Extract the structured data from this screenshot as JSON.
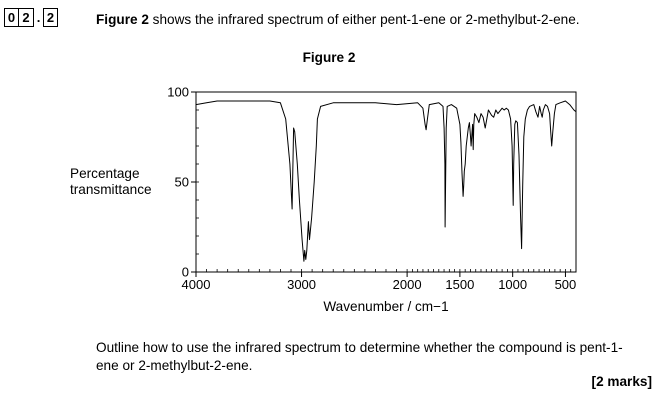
{
  "question": {
    "number_digits": [
      "0",
      "2"
    ],
    "separator": ".",
    "part_digit": "2",
    "intro_bold": "Figure 2",
    "intro_rest": " shows the infrared spectrum of either pent-1-ene or 2-methylbut-2-ene.",
    "outline_text": "Outline how to use the infrared spectrum to determine whether the compound is pent-1-ene or 2-methylbut-2-ene.",
    "marks": "[2 marks]"
  },
  "chart_data": {
    "type": "line",
    "title": "Figure 2",
    "xlabel": "Wavenumber / cm−1",
    "ylabel": "Percentage transmittance",
    "xlim": [
      4000,
      400
    ],
    "ylim": [
      0,
      100
    ],
    "x_ticks": [
      4000,
      3000,
      2000,
      1500,
      1000,
      500
    ],
    "x_tick_labels": [
      "4000",
      "3000",
      "2000",
      "1500",
      "1000",
      "500"
    ],
    "y_ticks": [
      0,
      50,
      100
    ],
    "y_tick_labels": [
      "0",
      "50",
      "100"
    ],
    "grid": false,
    "series": [
      {
        "points": [
          [
            4000,
            93
          ],
          [
            3900,
            94
          ],
          [
            3800,
            95
          ],
          [
            3700,
            95
          ],
          [
            3500,
            95
          ],
          [
            3300,
            95
          ],
          [
            3200,
            94
          ],
          [
            3150,
            85
          ],
          [
            3110,
            60
          ],
          [
            3090,
            35
          ],
          [
            3080,
            65
          ],
          [
            3075,
            80
          ],
          [
            3065,
            78
          ],
          [
            3040,
            60
          ],
          [
            3020,
            40
          ],
          [
            2995,
            18
          ],
          [
            2978,
            6
          ],
          [
            2970,
            12
          ],
          [
            2960,
            7
          ],
          [
            2950,
            12
          ],
          [
            2935,
            28
          ],
          [
            2925,
            18
          ],
          [
            2905,
            30
          ],
          [
            2880,
            50
          ],
          [
            2860,
            70
          ],
          [
            2850,
            85
          ],
          [
            2820,
            92
          ],
          [
            2700,
            94
          ],
          [
            2500,
            94
          ],
          [
            2300,
            94
          ],
          [
            2100,
            93
          ],
          [
            1900,
            94
          ],
          [
            1850,
            91
          ],
          [
            1830,
            82
          ],
          [
            1820,
            79
          ],
          [
            1810,
            84
          ],
          [
            1790,
            93
          ],
          [
            1700,
            94
          ],
          [
            1660,
            92
          ],
          [
            1650,
            80
          ],
          [
            1642,
            60
          ],
          [
            1640,
            25
          ],
          [
            1636,
            45
          ],
          [
            1630,
            80
          ],
          [
            1620,
            92
          ],
          [
            1580,
            93
          ],
          [
            1530,
            91
          ],
          [
            1500,
            82
          ],
          [
            1490,
            72
          ],
          [
            1480,
            55
          ],
          [
            1470,
            42
          ],
          [
            1464,
            48
          ],
          [
            1458,
            56
          ],
          [
            1450,
            60
          ],
          [
            1440,
            70
          ],
          [
            1420,
            80
          ],
          [
            1410,
            83
          ],
          [
            1400,
            76
          ],
          [
            1394,
            70
          ],
          [
            1388,
            75
          ],
          [
            1380,
            82
          ],
          [
            1374,
            68
          ],
          [
            1368,
            82
          ],
          [
            1360,
            88
          ],
          [
            1340,
            86
          ],
          [
            1320,
            83
          ],
          [
            1300,
            88
          ],
          [
            1280,
            86
          ],
          [
            1260,
            80
          ],
          [
            1245,
            85
          ],
          [
            1230,
            90
          ],
          [
            1200,
            87
          ],
          [
            1180,
            86
          ],
          [
            1160,
            90
          ],
          [
            1140,
            88
          ],
          [
            1100,
            91
          ],
          [
            1080,
            90
          ],
          [
            1060,
            91
          ],
          [
            1040,
            90
          ],
          [
            1020,
            85
          ],
          [
            1005,
            70
          ],
          [
            995,
            37
          ],
          [
            990,
            60
          ],
          [
            980,
            82
          ],
          [
            970,
            84
          ],
          [
            955,
            83
          ],
          [
            940,
            65
          ],
          [
            925,
            30
          ],
          [
            915,
            13
          ],
          [
            905,
            48
          ],
          [
            895,
            75
          ],
          [
            880,
            85
          ],
          [
            860,
            90
          ],
          [
            840,
            92
          ],
          [
            800,
            93
          ],
          [
            780,
            89
          ],
          [
            760,
            86
          ],
          [
            745,
            92
          ],
          [
            730,
            88
          ],
          [
            720,
            86
          ],
          [
            710,
            90
          ],
          [
            690,
            93
          ],
          [
            670,
            92
          ],
          [
            650,
            88
          ],
          [
            640,
            78
          ],
          [
            630,
            70
          ],
          [
            620,
            78
          ],
          [
            605,
            88
          ],
          [
            590,
            93
          ],
          [
            550,
            94
          ],
          [
            500,
            95
          ],
          [
            460,
            93
          ],
          [
            420,
            90
          ],
          [
            400,
            89
          ]
        ]
      }
    ]
  }
}
